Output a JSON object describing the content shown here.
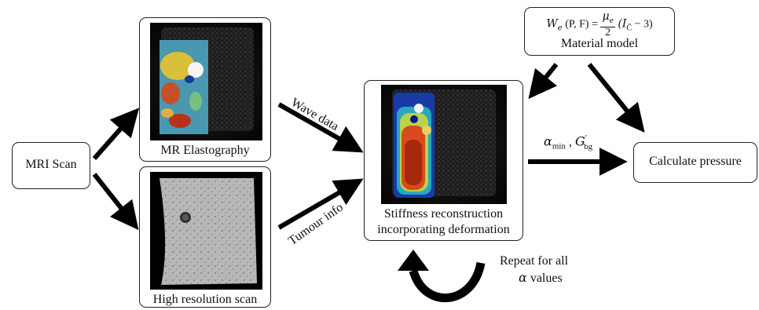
{
  "nodes": {
    "mri_scan": "MRI Scan",
    "mr_elastography": "MR Elastography",
    "high_res_scan": "High resolution scan",
    "stiffness": [
      "Stiffness reconstruction",
      "incorporating deformation"
    ],
    "material_model": "Material model",
    "calculate_pressure": "Calculate pressure"
  },
  "edges": {
    "wave_data": "Wave data",
    "tumour_info": "Tumour info",
    "repeat": [
      "Repeat for all",
      "values"
    ],
    "repeat_symbol": "α",
    "alpha_label": "α",
    "alpha_sub": "min",
    "g_label": "G",
    "g_sup": "′",
    "g_sub": "bg"
  },
  "formula": {
    "lhs": "W",
    "lhs_sub": "e",
    "args": "(P, F) =",
    "num": "μ",
    "num_sub": "e",
    "den": "2",
    "rhs": "(I",
    "rhs_sub": "C̄",
    "rhs_tail": " − 3)"
  }
}
